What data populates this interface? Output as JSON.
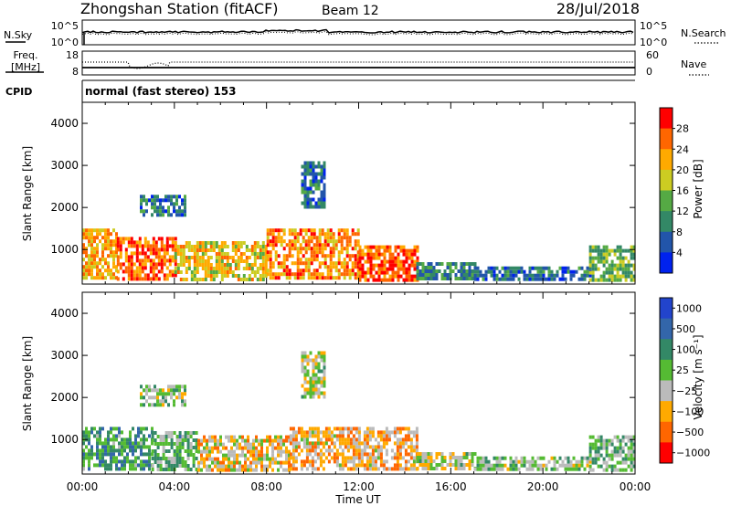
{
  "header": {
    "station": "Zhongshan Station (fitACF)",
    "beam": "Beam 12",
    "date": "28/Jul/2018"
  },
  "noise_panel": {
    "left_label": "N.Sky",
    "left_ticks": [
      "10^5",
      "10^0"
    ],
    "right_ticks": [
      "10^5",
      "10^0"
    ],
    "right_label": "N.Search"
  },
  "freq_panel": {
    "left_label_1": "Freq.",
    "left_label_2": "[MHz]",
    "left_ticks": [
      "18",
      "8"
    ],
    "right_ticks": [
      "60",
      "0"
    ],
    "right_label": "Nave"
  },
  "cpid_panel": {
    "label": "CPID",
    "text": "normal (fast stereo) 153"
  },
  "colors": {
    "power_scale": [
      "#0022ee",
      "#2255aa",
      "#338866",
      "#55aa44",
      "#cccc22",
      "#ffaa00",
      "#ff6600",
      "#ff0000"
    ],
    "velocity_scale": [
      "#2244cc",
      "#3366aa",
      "#338866",
      "#55bb33",
      "#bbbbbb",
      "#ffaa00",
      "#ff6600",
      "#ff0000"
    ]
  },
  "chart_data": [
    {
      "type": "heatmap",
      "name": "power",
      "ylabel": "Slant Range [km]",
      "xlabel": "",
      "xlim": [
        0,
        24
      ],
      "ylim": [
        180,
        4500
      ],
      "x_ticks": [
        "00:00",
        "04:00",
        "08:00",
        "12:00",
        "16:00",
        "20:00",
        "00:00"
      ],
      "y_ticks": [
        1000,
        2000,
        3000,
        4000
      ],
      "colorbar": {
        "label": "Power [dB]",
        "ticks": [
          "28",
          "24",
          "20",
          "16",
          "12",
          "8",
          "4"
        ],
        "range": [
          0,
          32
        ]
      },
      "regions": [
        {
          "t0": 0.0,
          "t1": 1.5,
          "r0": 300,
          "r1": 1500,
          "value": 22
        },
        {
          "t0": 1.5,
          "t1": 4.0,
          "r0": 300,
          "r1": 1300,
          "value": 26
        },
        {
          "t0": 4.0,
          "t1": 8.0,
          "r0": 300,
          "r1": 1200,
          "value": 20
        },
        {
          "t0": 8.0,
          "t1": 12.0,
          "r0": 300,
          "r1": 1500,
          "value": 24
        },
        {
          "t0": 12.0,
          "t1": 14.5,
          "r0": 300,
          "r1": 1100,
          "value": 27
        },
        {
          "t0": 14.5,
          "t1": 17.0,
          "r0": 300,
          "r1": 700,
          "value": 10
        },
        {
          "t0": 17.0,
          "t1": 22.0,
          "r0": 300,
          "r1": 600,
          "value": 8
        },
        {
          "t0": 22.0,
          "t1": 24.0,
          "r0": 300,
          "r1": 1100,
          "value": 14
        },
        {
          "t0": 2.5,
          "t1": 4.5,
          "r0": 1800,
          "r1": 2300,
          "value": 8
        },
        {
          "t0": 9.5,
          "t1": 10.5,
          "r0": 2000,
          "r1": 3100,
          "value": 8
        }
      ]
    },
    {
      "type": "heatmap",
      "name": "velocity",
      "ylabel": "Slant Range [km]",
      "xlabel": "Time UT",
      "xlim": [
        0,
        24
      ],
      "ylim": [
        180,
        4500
      ],
      "x_ticks": [
        "00:00",
        "04:00",
        "08:00",
        "12:00",
        "16:00",
        "20:00",
        "00:00"
      ],
      "y_ticks": [
        1000,
        2000,
        3000,
        4000
      ],
      "colorbar": {
        "label": "Velocity [m s⁻¹]",
        "ticks": [
          "1000",
          "500",
          "100",
          "25",
          "−25",
          "−100",
          "−500",
          "−1000"
        ],
        "range": [
          -1200,
          1200
        ]
      },
      "regions": [
        {
          "t0": 0.0,
          "t1": 3.0,
          "r0": 300,
          "r1": 1300,
          "value": 400
        },
        {
          "t0": 3.0,
          "t1": 5.0,
          "r0": 300,
          "r1": 1200,
          "value": 200
        },
        {
          "t0": 5.0,
          "t1": 9.0,
          "r0": 300,
          "r1": 1100,
          "value": -300
        },
        {
          "t0": 9.0,
          "t1": 14.5,
          "r0": 300,
          "r1": 1300,
          "value": -400
        },
        {
          "t0": 14.5,
          "t1": 17.0,
          "r0": 300,
          "r1": 700,
          "value": -100
        },
        {
          "t0": 17.0,
          "t1": 22.0,
          "r0": 300,
          "r1": 600,
          "value": 80
        },
        {
          "t0": 22.0,
          "t1": 24.0,
          "r0": 300,
          "r1": 1100,
          "value": 150
        },
        {
          "t0": 2.5,
          "t1": 4.5,
          "r0": 1800,
          "r1": 2300,
          "value": 0
        },
        {
          "t0": 9.5,
          "t1": 10.5,
          "r0": 2000,
          "r1": 3100,
          "value": -60
        }
      ]
    }
  ]
}
